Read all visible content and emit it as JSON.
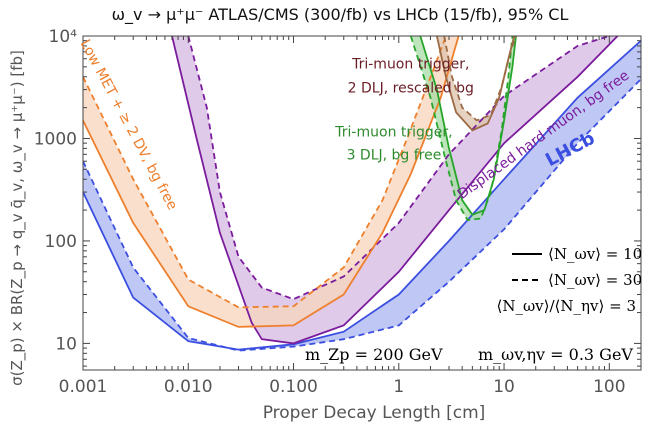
{
  "chart_data": {
    "type": "line",
    "title": "ω_v → μ⁺μ⁻  ATLAS/CMS (300/fb) vs LHCb (15/fb),  95% CL",
    "xlabel": "Proper Decay Length [cm]",
    "ylabel": "σ(Z_p) × BR(Z_p → q_v q̄_v,  ω_v → μ⁺μ⁻) [fb]",
    "xscale": "log",
    "yscale": "log",
    "xlim": [
      0.001,
      200
    ],
    "ylim": [
      5.5,
      10000
    ],
    "x_ticks": [
      {
        "value": 0.001,
        "label": "0.001"
      },
      {
        "value": 0.01,
        "label": "0.010"
      },
      {
        "value": 0.1,
        "label": "0.100"
      },
      {
        "value": 1,
        "label": "1"
      },
      {
        "value": 10,
        "label": "10"
      },
      {
        "value": 100,
        "label": "100"
      }
    ],
    "y_ticks": [
      {
        "value": 10,
        "label": "10"
      },
      {
        "value": 100,
        "label": "100"
      },
      {
        "value": 1000,
        "label": "1000"
      },
      {
        "value": 10000,
        "label": "10⁴"
      }
    ],
    "bands": [
      {
        "label": "LHCb",
        "color": "#3b4fe0",
        "fill": "#aab4f2",
        "solid": [
          [
            0.001,
            300
          ],
          [
            0.003,
            28
          ],
          [
            0.01,
            10.5
          ],
          [
            0.03,
            8.7
          ],
          [
            0.1,
            9.8
          ],
          [
            0.3,
            13
          ],
          [
            1,
            30
          ],
          [
            3,
            100
          ],
          [
            10,
            400
          ],
          [
            50,
            2500
          ],
          [
            200,
            9000
          ]
        ],
        "dashed": [
          [
            0.001,
            600
          ],
          [
            0.003,
            55
          ],
          [
            0.01,
            11.3
          ],
          [
            0.03,
            8.5
          ],
          [
            0.1,
            9.3
          ],
          [
            0.3,
            11
          ],
          [
            1,
            15
          ],
          [
            3,
            40
          ],
          [
            10,
            130
          ],
          [
            50,
            900
          ],
          [
            200,
            3800
          ]
        ]
      },
      {
        "label": "Displaced hard muon, bg free",
        "color": "#7a1c9c",
        "fill": "#d6b8e2",
        "solid": [
          [
            0.007,
            10000
          ],
          [
            0.012,
            1000
          ],
          [
            0.02,
            120
          ],
          [
            0.04,
            16
          ],
          [
            0.05,
            11
          ],
          [
            0.1,
            10
          ],
          [
            0.3,
            15
          ],
          [
            1,
            50
          ],
          [
            3,
            200
          ],
          [
            10,
            900
          ],
          [
            50,
            4000
          ],
          [
            120,
            10000
          ]
        ],
        "dashed": [
          [
            0.01,
            10000
          ],
          [
            0.015,
            2000
          ],
          [
            0.02,
            300
          ],
          [
            0.03,
            70
          ],
          [
            0.05,
            35
          ],
          [
            0.1,
            27
          ],
          [
            0.3,
            45
          ],
          [
            1,
            150
          ],
          [
            3,
            700
          ],
          [
            10,
            2600
          ],
          [
            50,
            8000
          ],
          [
            100,
            10000
          ]
        ]
      },
      {
        "label": "Low MET + ≥ 2 DV, bg free",
        "color": "#ee7f2d",
        "fill": "#f8d6bb",
        "solid": [
          [
            0.001,
            1500
          ],
          [
            0.003,
            150
          ],
          [
            0.01,
            23
          ],
          [
            0.03,
            14.5
          ],
          [
            0.1,
            15
          ],
          [
            0.3,
            30
          ],
          [
            0.7,
            120
          ],
          [
            1.3,
            450
          ],
          [
            2.5,
            2500
          ],
          [
            3.7,
            10000
          ]
        ],
        "dashed": [
          [
            0.001,
            4000
          ],
          [
            0.003,
            400
          ],
          [
            0.01,
            42
          ],
          [
            0.03,
            22.5
          ],
          [
            0.1,
            23
          ],
          [
            0.3,
            55
          ],
          [
            0.7,
            250
          ],
          [
            1.2,
            1000
          ],
          [
            2.1,
            4500
          ],
          [
            2.8,
            10000
          ]
        ]
      },
      {
        "label": "Tri-muon trigger, 3 DLJ, bg free",
        "color": "#26a52a",
        "fill": "#a8dca6",
        "solid": [
          [
            1.6,
            10000
          ],
          [
            2.3,
            3000
          ],
          [
            3,
            800
          ],
          [
            4,
            250
          ],
          [
            5,
            180
          ],
          [
            6.5,
            200
          ],
          [
            8,
            400
          ],
          [
            10,
            1500
          ],
          [
            12,
            5000
          ],
          [
            13,
            10000
          ]
        ],
        "dashed": [
          [
            1.3,
            10000
          ],
          [
            2,
            2500
          ],
          [
            2.7,
            700
          ],
          [
            3.5,
            250
          ],
          [
            4.5,
            160
          ],
          [
            6,
            165
          ],
          [
            7.5,
            300
          ],
          [
            9.5,
            1200
          ],
          [
            11,
            4000
          ],
          [
            12,
            10000
          ]
        ]
      },
      {
        "label": "Tri-muon trigger, 2 DLJ, rescaled bg",
        "color": "#9c6a45",
        "fill": "#dcc3ac",
        "solid": [
          [
            2.3,
            10000
          ],
          [
            2.8,
            4000
          ],
          [
            3.5,
            1800
          ],
          [
            5,
            1200
          ],
          [
            7,
            1400
          ],
          [
            9,
            2500
          ],
          [
            11,
            6000
          ],
          [
            12.5,
            10000
          ]
        ],
        "dashed": [
          [
            2.7,
            10000
          ],
          [
            3.2,
            4000
          ],
          [
            4,
            2000
          ],
          [
            5.5,
            1500
          ],
          [
            7.5,
            1700
          ],
          [
            9.5,
            3200
          ],
          [
            11.5,
            7000
          ],
          [
            13,
            10000
          ]
        ]
      }
    ],
    "annotations": [
      {
        "text": "Low MET + ≥ 2 DV, bg free",
        "color": "#ee7f2d",
        "x": 0.0025,
        "y": 1300,
        "angle": 62
      },
      {
        "text": "Tri-muon trigger,",
        "color": "#6b1d26",
        "x": 1.3,
        "y": 4800,
        "angle": 0
      },
      {
        "text": "2 DLJ, rescaled bg",
        "color": "#6b1d26",
        "x": 1.3,
        "y": 2800,
        "angle": 0
      },
      {
        "text": "Tri-muon trigger,",
        "color": "#2e8b2e",
        "x": 0.9,
        "y": 1050,
        "angle": 0
      },
      {
        "text": "3 DLJ, bg free",
        "color": "#2e8b2e",
        "x": 0.9,
        "y": 620,
        "angle": 0
      },
      {
        "text": "Displaced hard muon, bg free",
        "color": "#7a1c9c",
        "x": 25,
        "y": 1000,
        "angle": -36
      },
      {
        "text": "LHCb",
        "color": "#3b4fe0",
        "x": 45,
        "y": 700,
        "angle": -28
      }
    ],
    "legend": {
      "placement": "right",
      "entries": [
        {
          "style": "solid",
          "label": "⟨N_ωv⟩ = 10"
        },
        {
          "style": "dashed",
          "label": "⟨N_ωv⟩ = 30"
        },
        {
          "style": "none",
          "label": "⟨N_ωv⟩/⟨N_ηv⟩ = 3"
        }
      ]
    },
    "parameters": {
      "mass_zp": "m_Zp = 200 GeV",
      "mass_omega": "m_ωv,ηv = 0.3 GeV"
    }
  }
}
